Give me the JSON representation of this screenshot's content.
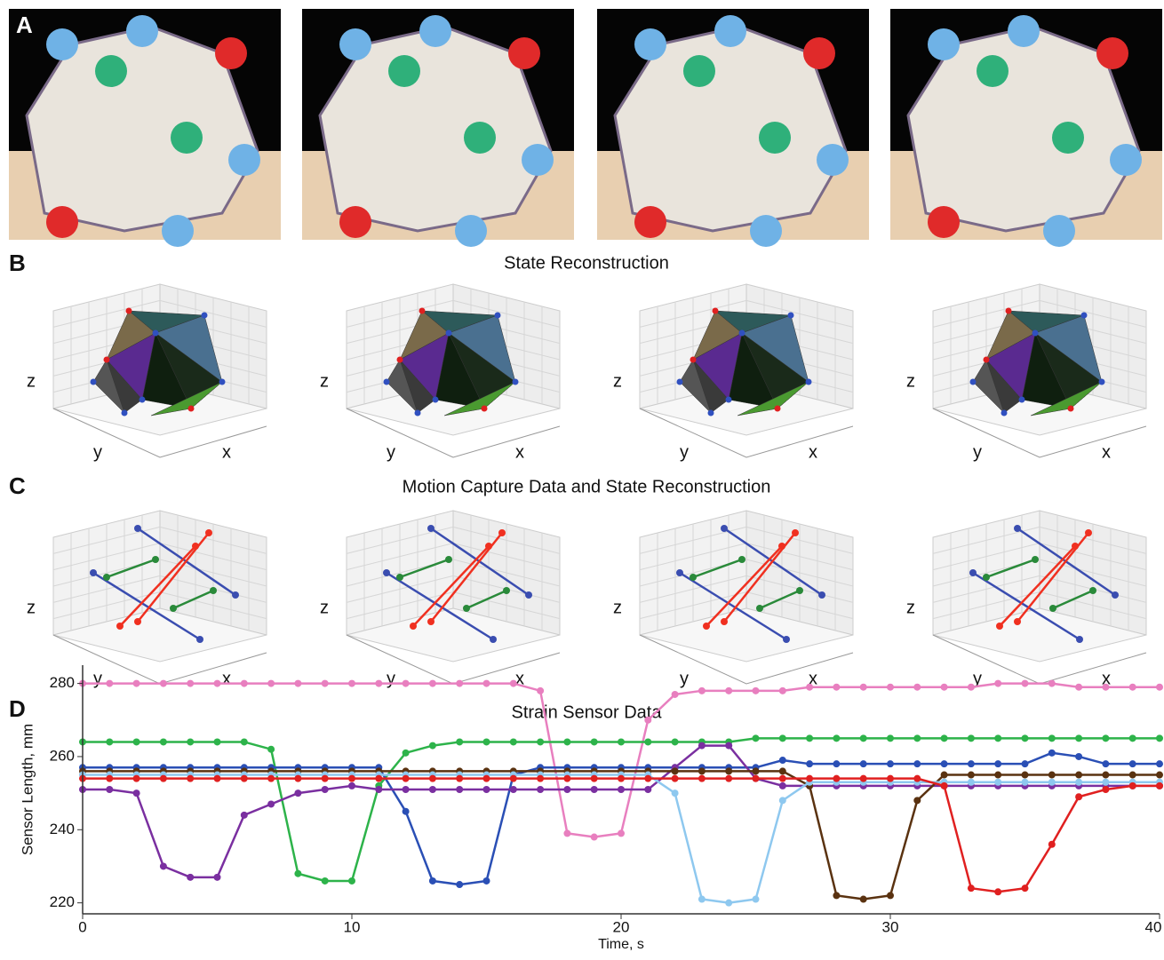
{
  "panels": {
    "labels": [
      "A",
      "B",
      "C",
      "D"
    ],
    "b_title": "State Reconstruction",
    "c_title": "Motion Capture Data and State Reconstruction",
    "plot_axes": {
      "x": "x",
      "y": "y",
      "z": "z"
    }
  },
  "chart_data": {
    "type": "line",
    "title": "Strain Sensor Data",
    "x_label": "Time, s",
    "y_label": "Sensor Length, mm",
    "xlim": [
      0,
      40
    ],
    "xticks": [
      0,
      10,
      20,
      30,
      40
    ],
    "ylim": [
      217,
      285
    ],
    "yticks": [
      220,
      240,
      260,
      280
    ],
    "x": [
      0,
      1,
      2,
      3,
      4,
      5,
      6,
      7,
      8,
      9,
      10,
      11,
      12,
      13,
      14,
      15,
      16,
      17,
      18,
      19,
      20,
      21,
      22,
      23,
      24,
      25,
      26,
      27,
      28,
      29,
      30,
      31,
      32,
      33,
      34,
      35,
      36,
      37,
      38,
      39,
      40
    ],
    "series": [
      {
        "color": "#e87fbf",
        "values": [
          280,
          280,
          280,
          280,
          280,
          280,
          280,
          280,
          280,
          280,
          280,
          280,
          280,
          280,
          280,
          280,
          280,
          278,
          239,
          238,
          239,
          270,
          277,
          278,
          278,
          278,
          278,
          279,
          279,
          279,
          279,
          279,
          279,
          279,
          280,
          280,
          280,
          279,
          279,
          279,
          279
        ]
      },
      {
        "color": "#2db34a",
        "values": [
          264,
          264,
          264,
          264,
          264,
          264,
          264,
          262,
          228,
          226,
          226,
          252,
          261,
          263,
          264,
          264,
          264,
          264,
          264,
          264,
          264,
          264,
          264,
          264,
          264,
          265,
          265,
          265,
          265,
          265,
          265,
          265,
          265,
          265,
          265,
          265,
          265,
          265,
          265,
          265,
          265
        ]
      },
      {
        "color": "#2a4fb5",
        "values": [
          257,
          257,
          257,
          257,
          257,
          257,
          257,
          257,
          257,
          257,
          257,
          257,
          245,
          226,
          225,
          226,
          255,
          257,
          257,
          257,
          257,
          257,
          257,
          257,
          257,
          257,
          259,
          258,
          258,
          258,
          258,
          258,
          258,
          258,
          258,
          258,
          261,
          260,
          258,
          258,
          258
        ]
      },
      {
        "color": "#7a2fa0",
        "values": [
          251,
          251,
          250,
          230,
          227,
          227,
          244,
          247,
          250,
          251,
          252,
          251,
          251,
          251,
          251,
          251,
          251,
          251,
          251,
          251,
          251,
          251,
          257,
          263,
          263,
          254,
          252,
          252,
          252,
          252,
          252,
          252,
          252,
          252,
          252,
          252,
          252,
          252,
          252,
          252,
          252
        ]
      },
      {
        "color": "#5a3210",
        "values": [
          256,
          256,
          256,
          256,
          256,
          256,
          256,
          256,
          256,
          256,
          256,
          256,
          256,
          256,
          256,
          256,
          256,
          256,
          256,
          256,
          256,
          256,
          256,
          256,
          256,
          256,
          256,
          252,
          222,
          221,
          222,
          248,
          255,
          255,
          255,
          255,
          255,
          255,
          255,
          255,
          255
        ]
      },
      {
        "color": "#8ec8ef",
        "values": [
          255,
          255,
          255,
          255,
          255,
          255,
          255,
          255,
          255,
          255,
          255,
          255,
          255,
          255,
          255,
          255,
          255,
          255,
          255,
          255,
          255,
          255,
          250,
          221,
          220,
          221,
          248,
          253,
          253,
          253,
          253,
          253,
          253,
          253,
          253,
          253,
          253,
          253,
          253,
          253,
          253
        ]
      },
      {
        "color": "#e02020",
        "values": [
          254,
          254,
          254,
          254,
          254,
          254,
          254,
          254,
          254,
          254,
          254,
          254,
          254,
          254,
          254,
          254,
          254,
          254,
          254,
          254,
          254,
          254,
          254,
          254,
          254,
          254,
          254,
          254,
          254,
          254,
          254,
          254,
          252,
          224,
          223,
          224,
          236,
          249,
          251,
          252,
          252
        ]
      }
    ]
  }
}
